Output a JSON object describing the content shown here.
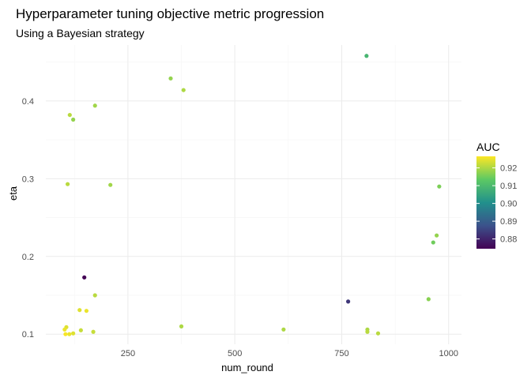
{
  "chart_data": {
    "type": "scatter",
    "title": "Hyperparameter tuning objective metric progression",
    "subtitle": "Using a Bayesian strategy",
    "xlabel": "num_round",
    "ylabel": "eta",
    "xlim": [
      58,
      1030
    ],
    "ylim": [
      0.087,
      0.472
    ],
    "xticks": [
      250,
      500,
      750,
      1000
    ],
    "yticks": [
      0.1,
      0.2,
      0.3,
      0.4
    ],
    "xtick_labels": [
      "250",
      "500",
      "750",
      "1000"
    ],
    "ytick_labels": [
      "0.1",
      "0.2",
      "0.3",
      "0.4"
    ],
    "grid": true,
    "color_scale": {
      "name": "AUC",
      "palette": "viridis",
      "min": 0.8745,
      "max": 0.9265,
      "breaks": [
        0.88,
        0.89,
        0.9,
        0.91,
        0.92
      ],
      "break_labels": [
        "0.88",
        "0.89",
        "0.90",
        "0.91",
        "0.92"
      ],
      "legend_position": "right"
    },
    "points": [
      {
        "x": 808,
        "y": 0.458,
        "auc": 0.909
      },
      {
        "x": 350,
        "y": 0.429,
        "auc": 0.918
      },
      {
        "x": 380,
        "y": 0.414,
        "auc": 0.92
      },
      {
        "x": 173,
        "y": 0.394,
        "auc": 0.919
      },
      {
        "x": 114,
        "y": 0.382,
        "auc": 0.921
      },
      {
        "x": 122,
        "y": 0.376,
        "auc": 0.918
      },
      {
        "x": 109,
        "y": 0.293,
        "auc": 0.921
      },
      {
        "x": 209,
        "y": 0.292,
        "auc": 0.919
      },
      {
        "x": 978,
        "y": 0.29,
        "auc": 0.916
      },
      {
        "x": 972,
        "y": 0.227,
        "auc": 0.918
      },
      {
        "x": 964,
        "y": 0.218,
        "auc": 0.915
      },
      {
        "x": 148,
        "y": 0.173,
        "auc": 0.875
      },
      {
        "x": 173,
        "y": 0.15,
        "auc": 0.921
      },
      {
        "x": 953,
        "y": 0.145,
        "auc": 0.917
      },
      {
        "x": 765,
        "y": 0.142,
        "auc": 0.883
      },
      {
        "x": 137,
        "y": 0.131,
        "auc": 0.924
      },
      {
        "x": 153,
        "y": 0.13,
        "auc": 0.925
      },
      {
        "x": 375,
        "y": 0.11,
        "auc": 0.92
      },
      {
        "x": 106,
        "y": 0.109,
        "auc": 0.924
      },
      {
        "x": 102,
        "y": 0.106,
        "auc": 0.925
      },
      {
        "x": 140,
        "y": 0.105,
        "auc": 0.922
      },
      {
        "x": 614,
        "y": 0.106,
        "auc": 0.92
      },
      {
        "x": 810,
        "y": 0.106,
        "auc": 0.92
      },
      {
        "x": 810,
        "y": 0.103,
        "auc": 0.921
      },
      {
        "x": 169,
        "y": 0.103,
        "auc": 0.922
      },
      {
        "x": 104,
        "y": 0.1,
        "auc": 0.926
      },
      {
        "x": 113,
        "y": 0.1,
        "auc": 0.925
      },
      {
        "x": 122,
        "y": 0.101,
        "auc": 0.924
      },
      {
        "x": 835,
        "y": 0.101,
        "auc": 0.921
      }
    ]
  }
}
